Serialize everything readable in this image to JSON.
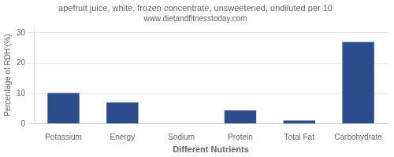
{
  "chart_data": {
    "type": "bar",
    "title": "apefruit juice, white, frozen concentrate, unsweetened, undiluted per 10",
    "subtitle": "www.dietandfitnesstoday.com",
    "xlabel": "Different Nutrients",
    "ylabel": "Percentage of RDH (%)",
    "categories": [
      "Potassium",
      "Energy",
      "Sodium",
      "Protein",
      "Total Fat",
      "Carbohydrate"
    ],
    "values": [
      10.2,
      7.1,
      0.0,
      4.5,
      1.1,
      27.0
    ],
    "color": "#2b4d8c",
    "ylim": [
      0,
      32
    ],
    "yticks": [
      0,
      10,
      20,
      30
    ],
    "grid": true
  }
}
